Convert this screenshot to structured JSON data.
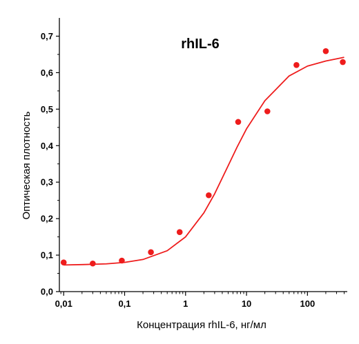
{
  "chart_data": {
    "type": "scatter",
    "title": "rhIL-6",
    "xlabel": "Концентрация rhIL-6, нг/мл",
    "ylabel": "Оптическая плотность",
    "x_scale": "log",
    "xlim": [
      0.0085,
      450
    ],
    "ylim": [
      0,
      0.75
    ],
    "x_ticks": [
      0.01,
      0.1,
      1,
      10,
      100
    ],
    "x_tick_labels": [
      "0,01",
      "0,1",
      "1",
      "10",
      "100"
    ],
    "y_ticks": [
      0,
      0.1,
      0.2,
      0.3,
      0.4,
      0.5,
      0.6,
      0.7
    ],
    "y_tick_labels": [
      "0,0",
      "0,1",
      "0,2",
      "0,3",
      "0,4",
      "0,5",
      "0,6",
      "0,7"
    ],
    "grid": false,
    "legend": "none",
    "series": [
      {
        "kind": "points",
        "color": "#ee1c1c",
        "x": [
          0.01,
          0.03,
          0.09,
          0.27,
          0.8,
          2.4,
          7.3,
          22,
          66,
          200,
          380
        ],
        "y": [
          0.08,
          0.077,
          0.085,
          0.108,
          0.163,
          0.264,
          0.465,
          0.494,
          0.621,
          0.659,
          0.629
        ]
      },
      {
        "kind": "fit-curve",
        "color": "#ee1c1c",
        "x": [
          0.01,
          0.02,
          0.05,
          0.1,
          0.2,
          0.5,
          1,
          2,
          3,
          5,
          7,
          10,
          20,
          50,
          100,
          200,
          400
        ],
        "y": [
          0.073,
          0.074,
          0.076,
          0.08,
          0.088,
          0.112,
          0.15,
          0.216,
          0.268,
          0.345,
          0.396,
          0.446,
          0.523,
          0.591,
          0.618,
          0.632,
          0.642
        ]
      }
    ]
  }
}
